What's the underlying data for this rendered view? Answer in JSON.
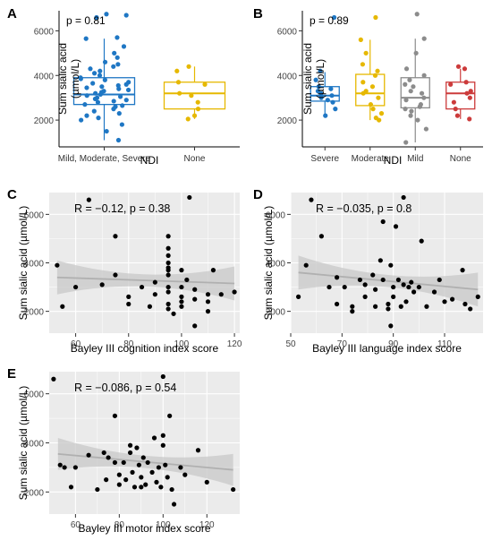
{
  "colors": {
    "blue": "#1f77c4",
    "yellow": "#e6b800",
    "gray": "#8c8c8c",
    "red": "#cc3b3b",
    "panel_bg": "#ebebeb",
    "grid": "#ffffff"
  },
  "chart_data": [
    {
      "panel": "A",
      "type": "box-scatter",
      "title": "",
      "annotation": "p = 0.81",
      "xlabel": "NDI",
      "ylabel": "Sum sialic acid (µmol/L)",
      "yticks": [
        2000,
        4000,
        6000
      ],
      "ylim": [
        800,
        6900
      ],
      "grid": false,
      "categories": [
        "Mild, Moderate, Severe",
        "None"
      ],
      "box_colors": [
        "#1f77c4",
        "#e6b800"
      ],
      "boxes": [
        {
          "q1": 2700,
          "median": 3150,
          "q3": 3900,
          "whisker_low": 1100,
          "whisker_high": 5650
        },
        {
          "q1": 2500,
          "median": 3200,
          "q3": 3700,
          "whisker_low": 2050,
          "whisker_high": 4400
        }
      ],
      "points": [
        [
          6750,
          6600,
          6700,
          5700,
          5650,
          5300,
          5000,
          4800,
          4600,
          4500,
          4400,
          4300,
          4200,
          4100,
          4000,
          3900,
          3850,
          3800,
          3700,
          3650,
          3600,
          3550,
          3500,
          3450,
          3400,
          3350,
          3300,
          3250,
          3200,
          3150,
          3100,
          3050,
          3000,
          2950,
          2900,
          2850,
          2800,
          2700,
          2650,
          2600,
          2500,
          2400,
          2300,
          2200,
          2100,
          2000,
          1800,
          1500,
          1100
        ],
        [
          4400,
          4200,
          3700,
          3600,
          3200,
          3100,
          2800,
          2500,
          2200,
          2050
        ]
      ]
    },
    {
      "panel": "B",
      "type": "box-scatter",
      "title": "",
      "annotation": "p = 0.89",
      "xlabel": "NDI",
      "ylabel": "Sum sialic acid (µmol/L)",
      "yticks": [
        2000,
        4000,
        6000
      ],
      "ylim": [
        800,
        6900
      ],
      "grid": false,
      "categories": [
        "Severe",
        "Moderate",
        "Mild",
        "None"
      ],
      "box_colors": [
        "#1f77c4",
        "#e6b800",
        "#8c8c8c",
        "#cc3b3b"
      ],
      "boxes": [
        {
          "q1": 2850,
          "median": 3100,
          "q3": 3500,
          "whisker_low": 2200,
          "whisker_high": 4150
        },
        {
          "q1": 2650,
          "median": 3200,
          "q3": 4050,
          "whisker_low": 2000,
          "whisker_high": 5600
        },
        {
          "q1": 2550,
          "median": 3000,
          "q3": 3900,
          "whisker_low": 1000,
          "whisker_high": 5650
        },
        {
          "q1": 2500,
          "median": 3200,
          "q3": 3700,
          "whisker_low": 2050,
          "whisker_high": 4300
        }
      ],
      "points": [
        [
          6600,
          4200,
          3800,
          3500,
          3400,
          3300,
          3200,
          3100,
          3000,
          2900,
          2800,
          2500,
          2200
        ],
        [
          6600,
          5600,
          5000,
          4500,
          4200,
          4000,
          3700,
          3500,
          3300,
          3200,
          3000,
          2700,
          2500,
          2300,
          2100,
          2000
        ],
        [
          6750,
          5650,
          5000,
          4300,
          4000,
          3800,
          3600,
          3500,
          3300,
          3200,
          3000,
          2900,
          2700,
          2600,
          2500,
          2400,
          2200,
          2000,
          1600,
          1000
        ],
        [
          4400,
          4300,
          3700,
          3600,
          3300,
          3200,
          3000,
          2800,
          2500,
          2200,
          2050
        ]
      ]
    },
    {
      "panel": "C",
      "type": "scatter",
      "title": "",
      "annotation": "R = −0.12, p = 0.38",
      "xlabel": "Bayley III cognition index score",
      "ylabel": "Sum sialic acid (µmol/L)",
      "xticks": [
        60,
        80,
        100,
        120
      ],
      "yticks": [
        2000,
        4000,
        6000
      ],
      "xlim": [
        50,
        122
      ],
      "ylim": [
        1100,
        6900
      ],
      "grid": true,
      "fit": {
        "x": [
          53,
          120
        ],
        "y": [
          3400,
          3150
        ]
      },
      "band_half_width": {
        "ends": 700,
        "middle": 250
      },
      "points": [
        [
          53,
          3900
        ],
        [
          55,
          2200
        ],
        [
          60,
          3000
        ],
        [
          65,
          6600
        ],
        [
          70,
          3100
        ],
        [
          75,
          5100
        ],
        [
          75,
          3500
        ],
        [
          80,
          2600
        ],
        [
          80,
          2300
        ],
        [
          85,
          3000
        ],
        [
          88,
          2200
        ],
        [
          90,
          3200
        ],
        [
          90,
          2700
        ],
        [
          95,
          2800
        ],
        [
          95,
          3000
        ],
        [
          95,
          3500
        ],
        [
          95,
          3700
        ],
        [
          95,
          3800
        ],
        [
          95,
          4000
        ],
        [
          95,
          4300
        ],
        [
          95,
          4600
        ],
        [
          95,
          5100
        ],
        [
          95,
          2300
        ],
        [
          95,
          2100
        ],
        [
          97,
          1900
        ],
        [
          100,
          3700
        ],
        [
          100,
          3000
        ],
        [
          100,
          2600
        ],
        [
          100,
          2400
        ],
        [
          100,
          2200
        ],
        [
          102,
          3300
        ],
        [
          103,
          6700
        ],
        [
          105,
          1400
        ],
        [
          105,
          2500
        ],
        [
          105,
          2900
        ],
        [
          110,
          2000
        ],
        [
          110,
          2400
        ],
        [
          110,
          2700
        ],
        [
          112,
          3700
        ],
        [
          115,
          2700
        ],
        [
          120,
          2800
        ]
      ]
    },
    {
      "panel": "D",
      "type": "scatter",
      "title": "",
      "annotation": "R = −0.035, p = 0.8",
      "xlabel": "Bayley III language index score",
      "ylabel": "Sum sialic acid (µmol/L)",
      "xticks": [
        50,
        70,
        90,
        110
      ],
      "yticks": [
        2000,
        4000,
        6000
      ],
      "xlim": [
        50,
        125
      ],
      "ylim": [
        1100,
        6900
      ],
      "grid": true,
      "fit": {
        "x": [
          53,
          123
        ],
        "y": [
          3600,
          2900
        ]
      },
      "band_half_width": {
        "ends": 700,
        "middle": 250
      },
      "points": [
        [
          53,
          2600
        ],
        [
          56,
          3900
        ],
        [
          58,
          6600
        ],
        [
          62,
          5100
        ],
        [
          65,
          3000
        ],
        [
          68,
          3400
        ],
        [
          68,
          2300
        ],
        [
          71,
          3000
        ],
        [
          74,
          2200
        ],
        [
          74,
          2000
        ],
        [
          77,
          3300
        ],
        [
          79,
          3100
        ],
        [
          79,
          2600
        ],
        [
          82,
          3500
        ],
        [
          83,
          2900
        ],
        [
          83,
          2200
        ],
        [
          85,
          4100
        ],
        [
          86,
          5700
        ],
        [
          86,
          3300
        ],
        [
          88,
          2300
        ],
        [
          88,
          2100
        ],
        [
          89,
          3900
        ],
        [
          89,
          1400
        ],
        [
          90,
          3000
        ],
        [
          90,
          2600
        ],
        [
          91,
          5500
        ],
        [
          92,
          3300
        ],
        [
          93,
          2200
        ],
        [
          94,
          6700
        ],
        [
          94,
          3100
        ],
        [
          95,
          2400
        ],
        [
          96,
          3000
        ],
        [
          97,
          3200
        ],
        [
          98,
          2800
        ],
        [
          100,
          3000
        ],
        [
          101,
          4900
        ],
        [
          103,
          2200
        ],
        [
          106,
          2800
        ],
        [
          108,
          3300
        ],
        [
          110,
          2400
        ],
        [
          113,
          2500
        ],
        [
          117,
          3700
        ],
        [
          118,
          2300
        ],
        [
          120,
          2100
        ],
        [
          123,
          2600
        ]
      ]
    },
    {
      "panel": "E",
      "type": "scatter",
      "title": "",
      "annotation": "R = −0.086, p = 0.54",
      "xlabel": "Bayley III motor index score",
      "ylabel": "Sum sialic acid (µmol/L)",
      "xticks": [
        60,
        80,
        100,
        120
      ],
      "yticks": [
        2000,
        4000,
        6000
      ],
      "xlim": [
        48,
        135
      ],
      "ylim": [
        1100,
        6900
      ],
      "grid": true,
      "fit": {
        "x": [
          52,
          132
        ],
        "y": [
          3550,
          2900
        ]
      },
      "band_half_width": {
        "ends": 650,
        "middle": 250
      },
      "points": [
        [
          50,
          6600
        ],
        [
          53,
          3100
        ],
        [
          55,
          3000
        ],
        [
          58,
          2200
        ],
        [
          60,
          3000
        ],
        [
          66,
          3500
        ],
        [
          70,
          2100
        ],
        [
          73,
          3600
        ],
        [
          74,
          2500
        ],
        [
          75,
          3400
        ],
        [
          78,
          5100
        ],
        [
          78,
          3200
        ],
        [
          80,
          2700
        ],
        [
          80,
          2300
        ],
        [
          82,
          3200
        ],
        [
          83,
          2500
        ],
        [
          85,
          3900
        ],
        [
          85,
          3600
        ],
        [
          86,
          2800
        ],
        [
          87,
          2200
        ],
        [
          88,
          3800
        ],
        [
          89,
          3100
        ],
        [
          90,
          2600
        ],
        [
          90,
          2200
        ],
        [
          91,
          3400
        ],
        [
          92,
          2300
        ],
        [
          93,
          3200
        ],
        [
          95,
          2800
        ],
        [
          96,
          4200
        ],
        [
          97,
          2400
        ],
        [
          98,
          3000
        ],
        [
          99,
          2200
        ],
        [
          100,
          6700
        ],
        [
          100,
          4300
        ],
        [
          100,
          3900
        ],
        [
          101,
          3100
        ],
        [
          102,
          2600
        ],
        [
          103,
          5100
        ],
        [
          104,
          2100
        ],
        [
          105,
          1500
        ],
        [
          108,
          3000
        ],
        [
          110,
          2700
        ],
        [
          116,
          3700
        ],
        [
          120,
          2400
        ],
        [
          132,
          2100
        ]
      ]
    }
  ]
}
